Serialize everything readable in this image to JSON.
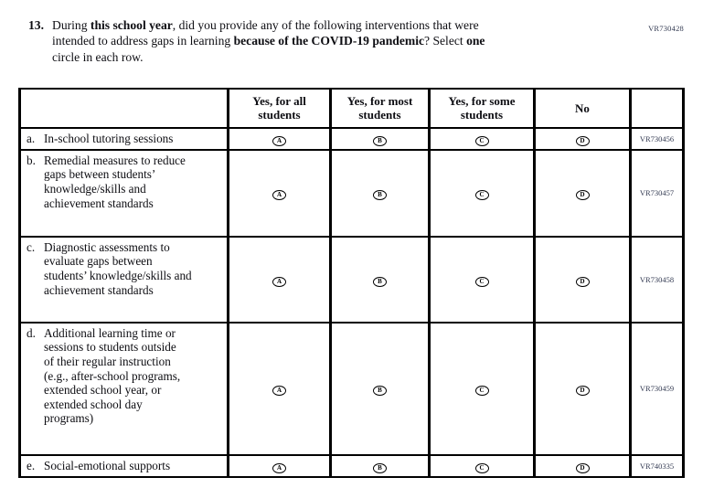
{
  "page_code": "VR730428",
  "question": {
    "number": "13.",
    "segments": [
      {
        "t": "During ",
        "b": false
      },
      {
        "t": "this school year",
        "b": true
      },
      {
        "t": ", did you provide any of the following interventions that were",
        "b": false,
        "br": true
      },
      {
        "t": "intended to address gaps in learning ",
        "b": false
      },
      {
        "t": "because of the COVID-19 pandemic",
        "b": true
      },
      {
        "t": "? Select ",
        "b": false
      },
      {
        "t": "one",
        "b": true,
        "br": true
      },
      {
        "t": "circle in each row.",
        "b": false
      }
    ]
  },
  "table": {
    "column_headers": [
      "Yes, for all students",
      "Yes, for most students",
      "Yes, for some students",
      "No"
    ],
    "answer_options": [
      "A",
      "B",
      "C",
      "D"
    ],
    "rows": [
      {
        "letter": "a.",
        "label": "In-school tutoring sessions",
        "code": "VR730456",
        "multiline": false,
        "height_class": "h23",
        "width_class": ""
      },
      {
        "letter": "b.",
        "label": "Remedial measures to reduce gaps between students’ knowledge/skills and achievement standards",
        "code": "VR730457",
        "multiline": true,
        "height_class": "h95",
        "width_class": "w152"
      },
      {
        "letter": "c.",
        "label": "Diagnostic assessments to evaluate gaps between students’ knowledge/skills and achievement standards",
        "code": "VR730458",
        "multiline": true,
        "height_class": "h94",
        "width_class": "w160"
      },
      {
        "letter": "d.",
        "label": "Additional learning time or sessions to students outside of their regular instruction (e.g., after-school programs, extended school year, or extended school day programs)",
        "code": "VR730459",
        "multiline": true,
        "height_class": "h145",
        "width_class": "w150"
      },
      {
        "letter": "e.",
        "label": "Social-emotional supports",
        "code": "VR740335",
        "multiline": false,
        "height_class": "h23",
        "width_class": ""
      }
    ]
  },
  "colors": {
    "ink": "#0d0d12",
    "code_ink": "#333a52"
  }
}
